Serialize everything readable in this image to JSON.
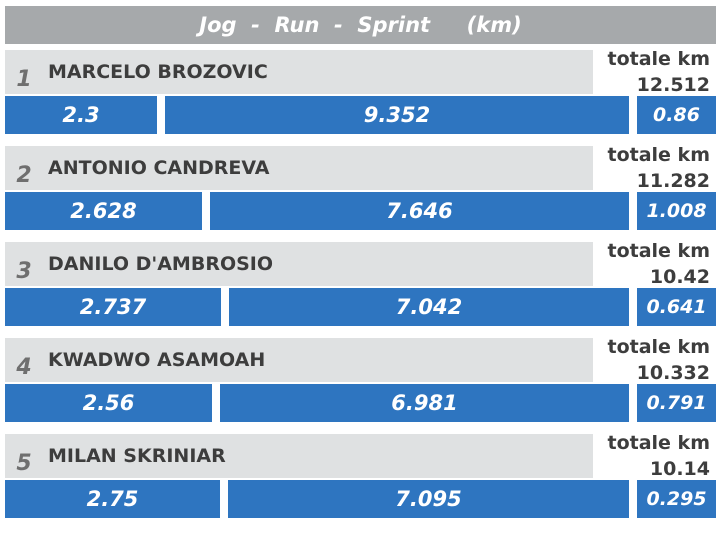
{
  "title": "Jog  -  Run  -  Sprint     (km)",
  "total_label": "totale km",
  "chart_data": {
    "type": "bar",
    "title": "Jog  -  Run  -  Sprint     (km)",
    "categories": [
      "MARCELO BROZOVIC",
      "ANTONIO CANDREVA",
      "DANILO D'AMBROSIO",
      "KWADWO ASAMOAH",
      "MILAN SKRINIAR"
    ],
    "series": [
      {
        "values": [
          2.3,
          2.628,
          2.737,
          2.56,
          2.75
        ]
      },
      {
        "values": [
          9.352,
          7.646,
          7.042,
          6.981,
          7.095
        ]
      },
      {
        "values": [
          0.86,
          1.008,
          0.641,
          0.791,
          0.295
        ]
      }
    ],
    "totals": [
      "12.512",
      "11.282",
      "10.42",
      "10.332",
      "10.14"
    ],
    "colors": {
      "bar": "#2e75c0",
      "header": "#a6a9ab",
      "name_bg": "#dfe1e2"
    }
  },
  "players": [
    {
      "rank": "1",
      "name": "MARCELO BROZOVIC",
      "total": "12.512",
      "jog": "2.3",
      "run": "9.352",
      "sprint": "0.86"
    },
    {
      "rank": "2",
      "name": "ANTONIO CANDREVA",
      "total": "11.282",
      "jog": "2.628",
      "run": "7.646",
      "sprint": "1.008"
    },
    {
      "rank": "3",
      "name": "DANILO D'AMBROSIO",
      "total": "10.42",
      "jog": "2.737",
      "run": "7.042",
      "sprint": "0.641"
    },
    {
      "rank": "4",
      "name": "KWADWO ASAMOAH",
      "total": "10.332",
      "jog": "2.56",
      "run": "6.981",
      "sprint": "0.791"
    },
    {
      "rank": "5",
      "name": "MILAN SKRINIAR",
      "total": "10.14",
      "jog": "2.75",
      "run": "7.095",
      "sprint": "0.295"
    }
  ]
}
